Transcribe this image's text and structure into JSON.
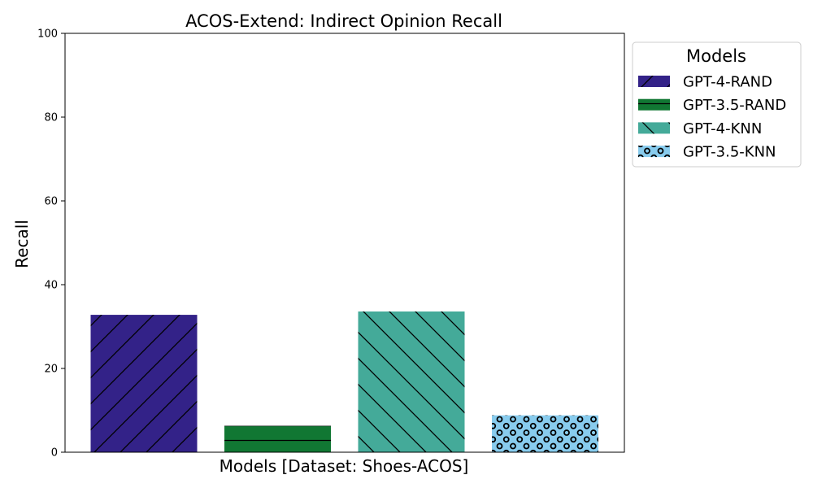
{
  "chart_data": {
    "type": "bar",
    "title": "ACOS-Extend: Indirect Opinion Recall",
    "xlabel": "Models [Dataset: Shoes-ACOS]",
    "ylabel": "Recall",
    "ylim": [
      0,
      100
    ],
    "yticks": [
      0,
      20,
      40,
      60,
      80,
      100
    ],
    "ytick_labels": [
      "0",
      "20",
      "40",
      "60",
      "80",
      "100"
    ],
    "grid": false,
    "legend": {
      "title": "Models",
      "placement": "outside-upper-right"
    },
    "series": [
      {
        "name": "GPT-4-RAND",
        "value": 32.8,
        "color": "#332288",
        "hatch": "forward-diagonal"
      },
      {
        "name": "GPT-3.5-RAND",
        "value": 6.3,
        "color": "#117733",
        "hatch": "horizontal"
      },
      {
        "name": "GPT-4-KNN",
        "value": 33.6,
        "color": "#44AA99",
        "hatch": "back-diagonal"
      },
      {
        "name": "GPT-3.5-KNN",
        "value": 8.8,
        "color": "#88CCEE",
        "hatch": "circles"
      }
    ]
  }
}
